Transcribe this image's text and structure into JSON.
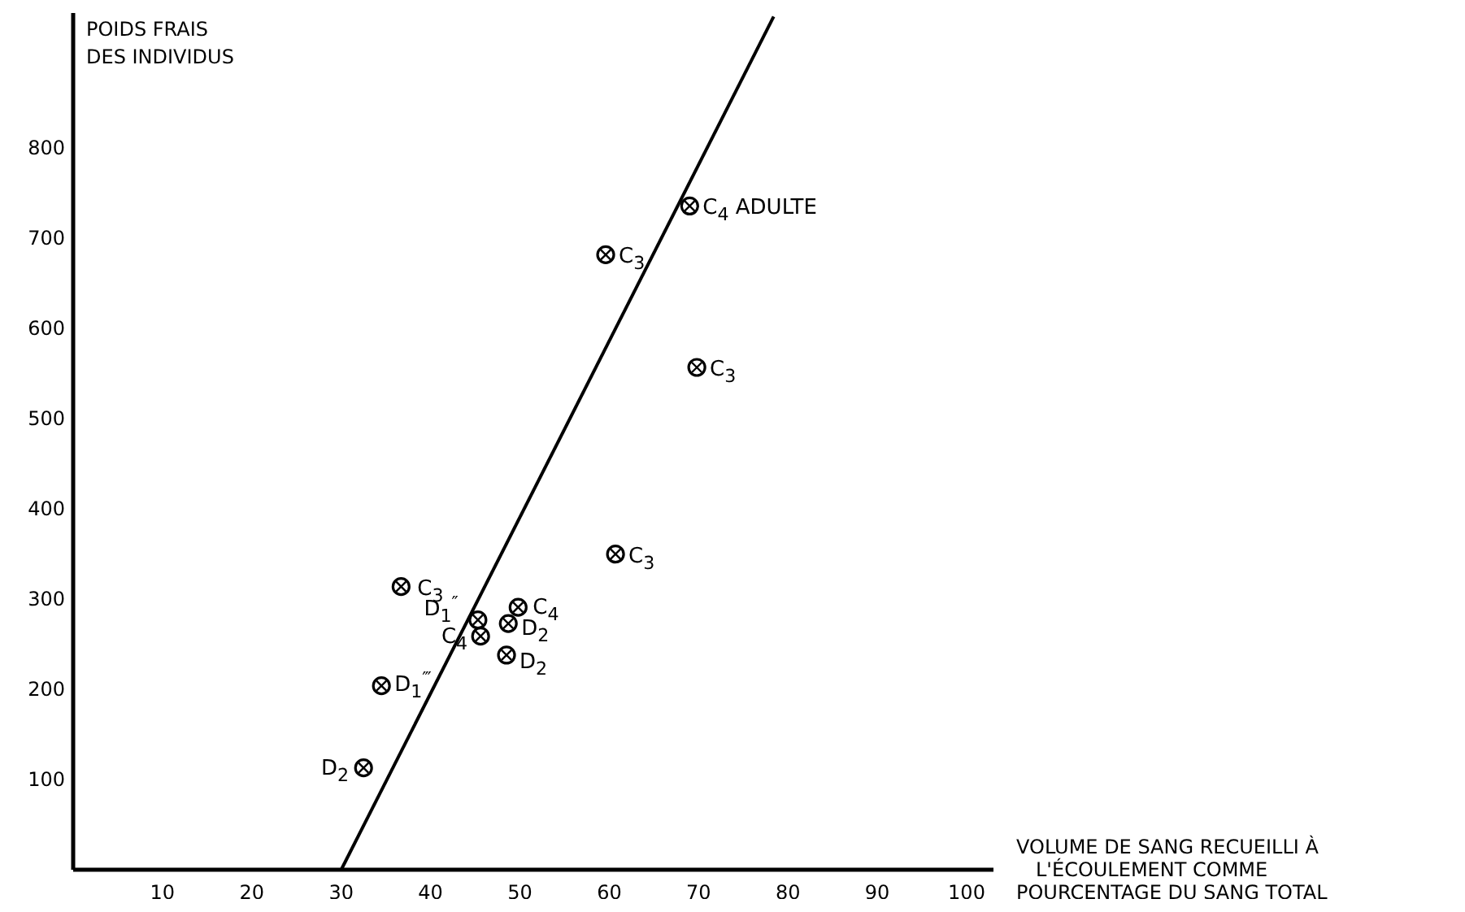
{
  "chart_data": {
    "type": "scatter",
    "xlabel": "VOLUME DE SANG RECUEILLI À L'ÉCOULEMENT COMME POURCENTAGE DU SANG TOTAL",
    "ylabel": "POIDS FRAIS DES INDIVIDUS",
    "xlim": [
      0,
      103
    ],
    "ylim": [
      0,
      950
    ],
    "xticks": [
      10,
      20,
      30,
      40,
      50,
      60,
      70,
      80,
      90,
      100
    ],
    "yticks": [
      100,
      200,
      300,
      400,
      500,
      600,
      700,
      800
    ],
    "grid": false,
    "marker": "circle",
    "series": [
      {
        "color": "#000000",
        "x": [
          69,
          59.6,
          69.8,
          60.7,
          36.7,
          45.3,
          45.6,
          49.8,
          48.7,
          48.5,
          34.5,
          32.5
        ],
        "values": [
          736,
          682,
          557,
          350,
          314,
          277,
          259,
          291,
          273,
          238,
          204,
          113
        ]
      },
      {
        "type": "line",
        "color": "#000000",
        "line_style": "solid",
        "marker": "none",
        "x": [
          30,
          78.4
        ],
        "values": [
          0,
          946
        ]
      }
    ],
    "annotations": [
      {
        "text": "C$_{4}$ ADULTE",
        "x": 69,
        "y": 736
      },
      {
        "text": "C$_{3}$",
        "x": 59.6,
        "y": 682
      },
      {
        "text": "C$_{3}$",
        "x": 69.8,
        "y": 557
      },
      {
        "text": "C$_{3}$",
        "x": 60.7,
        "y": 350
      },
      {
        "text": "C$_{3}$",
        "x": 36.7,
        "y": 314
      },
      {
        "text": "D$_{1}$$^{″}$",
        "x": 45.3,
        "y": 277
      },
      {
        "text": "C$_{4}$",
        "x": 45.6,
        "y": 259
      },
      {
        "text": "C$_{4}$",
        "x": 49.8,
        "y": 291
      },
      {
        "text": "D$_{2}$",
        "x": 48.7,
        "y": 273
      },
      {
        "text": "D$_{2}$",
        "x": 48.5,
        "y": 238
      },
      {
        "text": "D$_{1}$$^{‴}$",
        "x": 34.5,
        "y": 204
      },
      {
        "text": "D$_{2}$",
        "x": 32.5,
        "y": 113
      }
    ]
  }
}
